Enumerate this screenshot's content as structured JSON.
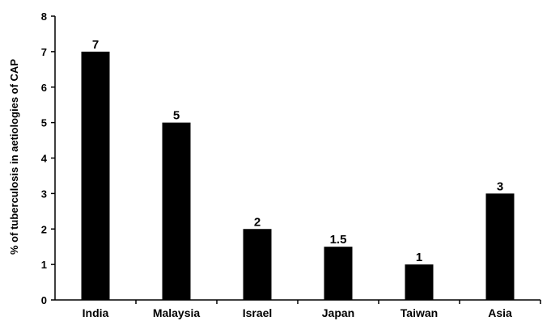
{
  "chart_data": {
    "type": "bar",
    "categories": [
      "India",
      "Malaysia",
      "Israel",
      "Japan",
      "Taiwan",
      "Asia"
    ],
    "values": [
      7,
      5,
      2,
      1.5,
      1,
      3
    ],
    "data_labels": [
      "7",
      "5",
      "2",
      "1.5",
      "1",
      "3"
    ],
    "title": "",
    "xlabel": "",
    "ylabel": "% of tuberculosis in aetiologies of CAP",
    "ylim": [
      0,
      8
    ],
    "yticks": [
      0,
      1,
      2,
      3,
      4,
      5,
      6,
      7,
      8
    ],
    "ytick_labels": [
      "0",
      "1",
      "2",
      "3",
      "4",
      "5",
      "6",
      "7",
      "8"
    ],
    "grid": false,
    "legend": "none",
    "bar_color": "#000000"
  }
}
